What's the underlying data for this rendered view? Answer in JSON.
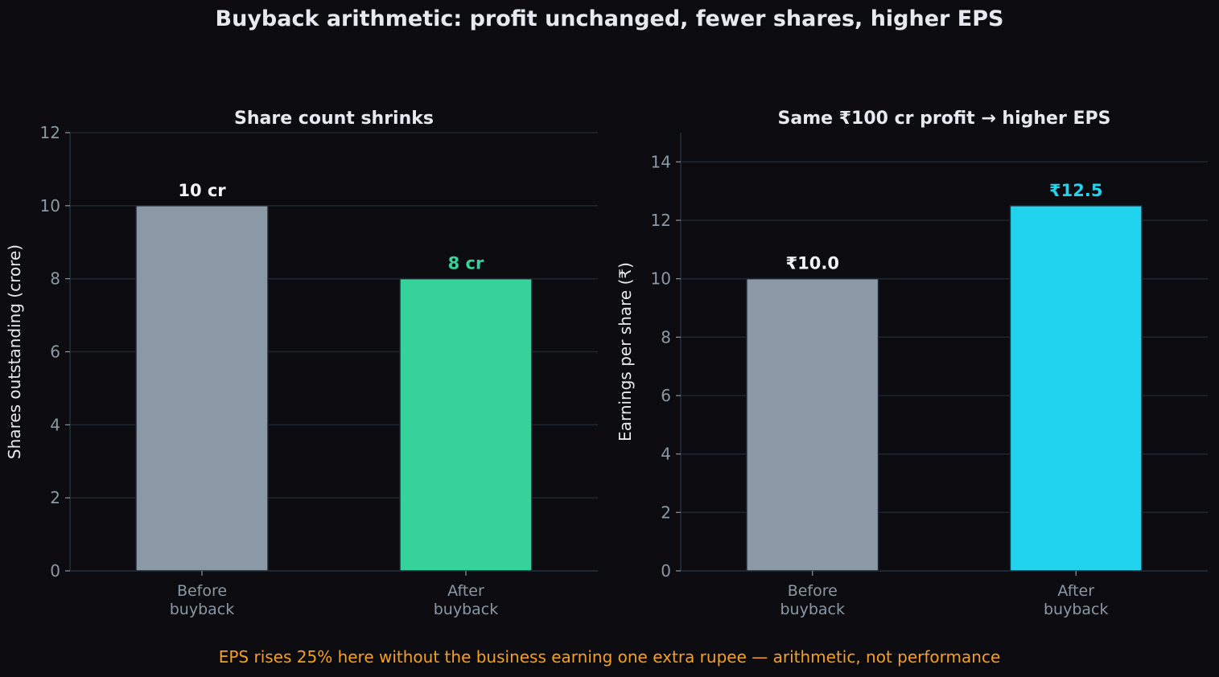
{
  "figure": {
    "title": "Buyback arithmetic: profit unchanged, fewer shares, higher EPS",
    "footnote": "EPS rises 25% here without the business earning one extra rupee — arithmetic, not performance",
    "footnote_color": "#f5a020",
    "background": "#0b0b10"
  },
  "chart_data": [
    {
      "type": "bar",
      "title": "Share count shrinks",
      "xlabel": "",
      "ylabel": "Shares outstanding (crore)",
      "categories": [
        "Before\nbuyback",
        "After\nbuyback"
      ],
      "values": [
        10,
        8
      ],
      "data_labels": [
        "10 cr",
        "8 cr"
      ],
      "bar_colors": [
        "#8b99a6",
        "#35d399"
      ],
      "label_colors": [
        "#f2f4f7",
        "#35d399"
      ],
      "ylim": [
        0,
        12
      ],
      "yticks": [
        0,
        2,
        4,
        6,
        8,
        10,
        12
      ],
      "grid": true
    },
    {
      "type": "bar",
      "title": "Same ₹100 cr profit → higher EPS",
      "xlabel": "",
      "ylabel": "Earnings per share (₹)",
      "categories": [
        "Before\nbuyback",
        "After\nbuyback"
      ],
      "values": [
        10.0,
        12.5
      ],
      "data_labels": [
        "₹10.0",
        "₹12.5"
      ],
      "bar_colors": [
        "#8b99a6",
        "#22d3ee"
      ],
      "label_colors": [
        "#f2f4f7",
        "#22d3ee"
      ],
      "ylim": [
        0,
        15
      ],
      "yticks": [
        0,
        2,
        4,
        6,
        8,
        10,
        12,
        14
      ],
      "grid": true
    }
  ]
}
